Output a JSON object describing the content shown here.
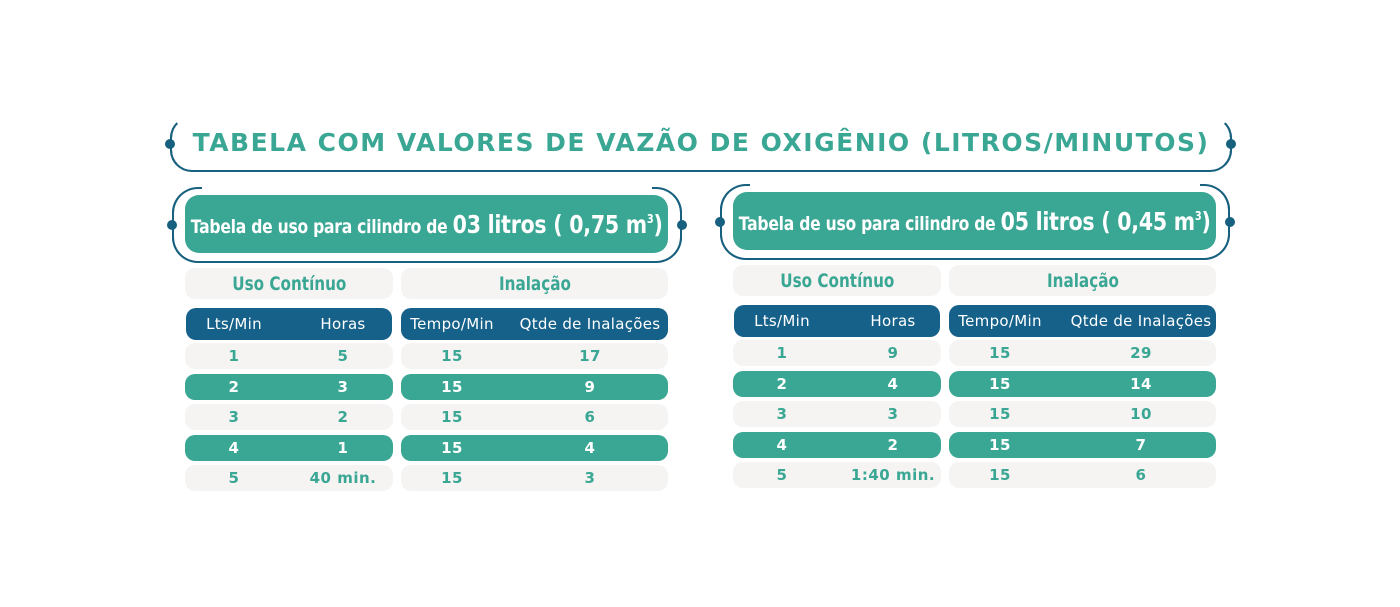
{
  "title": "TABELA COM VALORES DE VAZÃO DE OXIGÊNIO (LITROS/MINUTOS)",
  "colors": {
    "teal": "#3aa694",
    "navy": "#16618a",
    "light": "#f5f4f3",
    "line": "#17607f"
  },
  "tables": [
    {
      "subtitle_prefix": "Tabela de uso para cilindro de ",
      "subtitle_big": "03 litros ( 0,75 m",
      "subtitle_sup": "3",
      "subtitle_end": ")",
      "uso_label": "Uso Contínuo",
      "inal_label": "Inalação",
      "headers": [
        "Lts/Min",
        "Horas",
        "Tempo/Min",
        "Qtde de Inalações"
      ],
      "rows": [
        [
          "1",
          "5",
          "15",
          "17"
        ],
        [
          "2",
          "3",
          "15",
          "9"
        ],
        [
          "3",
          "2",
          "15",
          "6"
        ],
        [
          "4",
          "1",
          "15",
          "4"
        ],
        [
          "5",
          "40 min.",
          "15",
          "3"
        ]
      ]
    },
    {
      "subtitle_prefix": "Tabela de uso para cilindro de ",
      "subtitle_big": "05 litros ( 0,45 m",
      "subtitle_sup": "3",
      "subtitle_end": ")",
      "uso_label": "Uso Contínuo",
      "inal_label": "Inalação",
      "headers": [
        "Lts/Min",
        "Horas",
        "Tempo/Min",
        "Qtde de Inalações"
      ],
      "rows": [
        [
          "1",
          "9",
          "15",
          "29"
        ],
        [
          "2",
          "4",
          "15",
          "14"
        ],
        [
          "3",
          "3",
          "15",
          "10"
        ],
        [
          "4",
          "2",
          "15",
          "7"
        ],
        [
          "5",
          "1:40 min.",
          "15",
          "6"
        ]
      ]
    }
  ]
}
